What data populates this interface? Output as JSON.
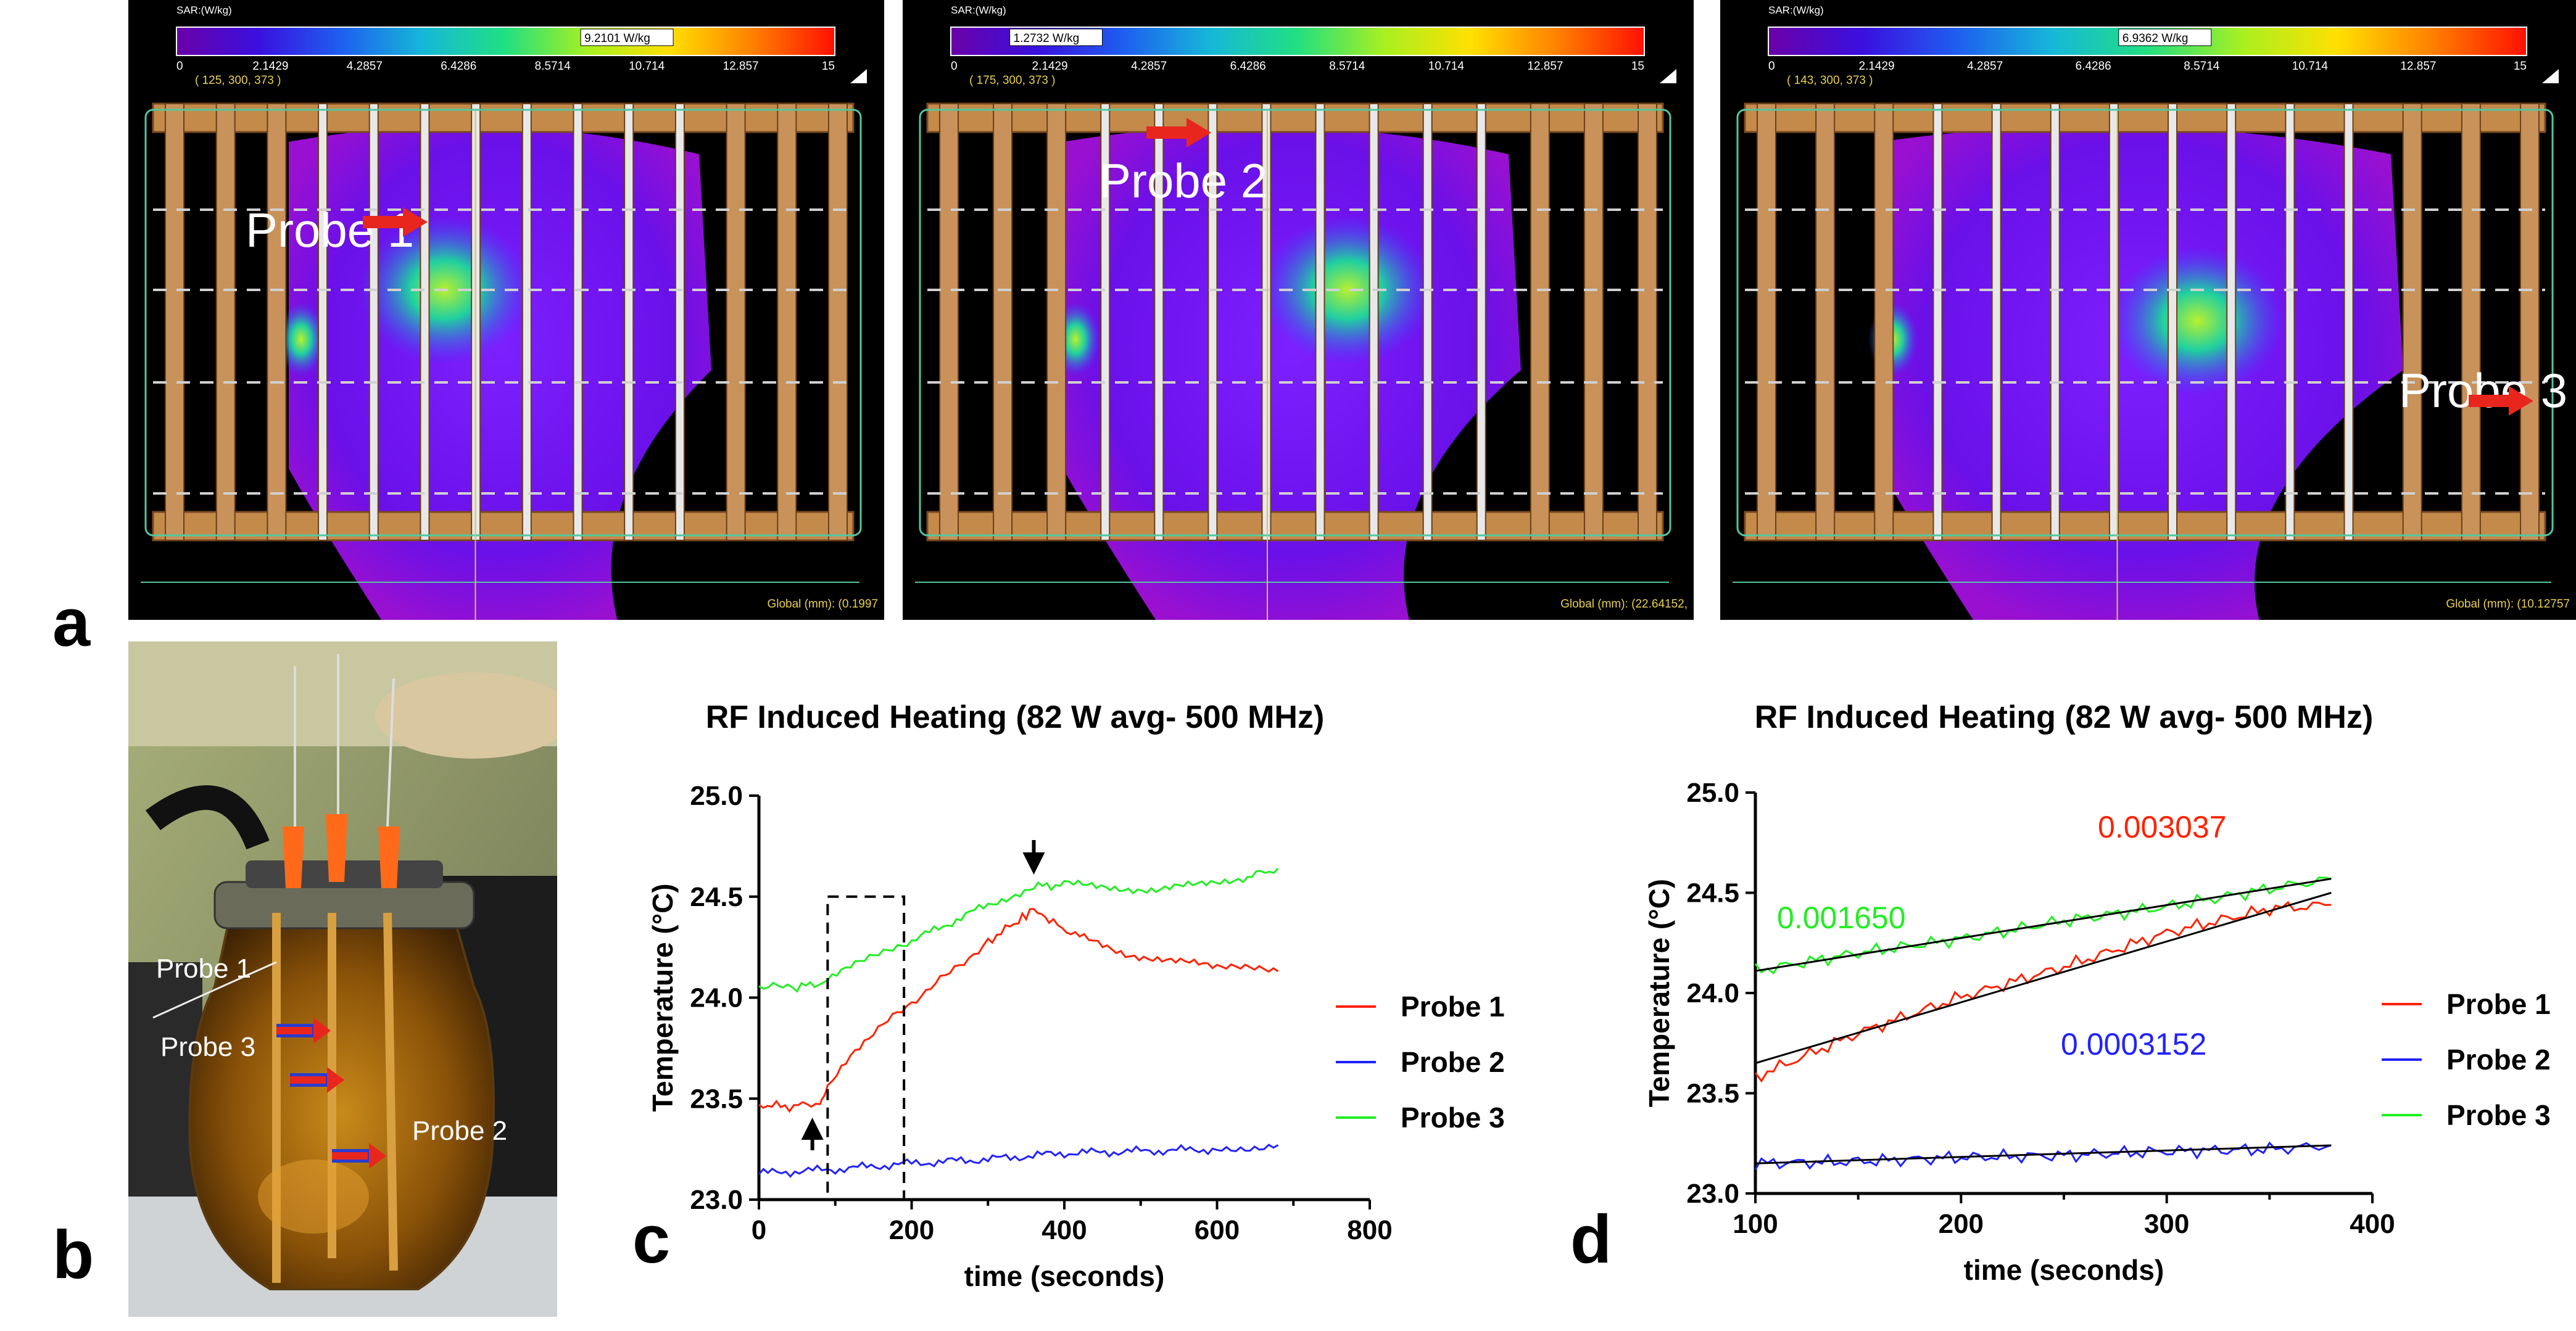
{
  "panel_letters": {
    "a": "a",
    "b": "b",
    "c": "c",
    "d": "d"
  },
  "sar_panels": [
    {
      "colorbar_title": "SAR:(W/kg)",
      "readout": "9.2101 W/kg",
      "readout_frac": 0.614,
      "ticks": [
        "0",
        "2.1429",
        "4.2857",
        "6.4286",
        "8.5714",
        "10.714",
        "12.857",
        "15"
      ],
      "coords": "( 125, 300, 373 )",
      "probe_label": "Probe 1",
      "global": "Global (mm): (0.1997"
    },
    {
      "colorbar_title": "SAR:(W/kg)",
      "readout": "1.2732 W/kg",
      "readout_frac": 0.085,
      "ticks": [
        "0",
        "2.1429",
        "4.2857",
        "6.4286",
        "8.5714",
        "10.714",
        "12.857",
        "15"
      ],
      "coords": "( 175, 300, 373 )",
      "probe_label": "Probe 2",
      "global": "Global (mm): (22.64152,"
    },
    {
      "colorbar_title": "SAR:(W/kg)",
      "readout": "6.9362 W/kg",
      "readout_frac": 0.462,
      "ticks": [
        "0",
        "2.1429",
        "4.2857",
        "6.4286",
        "8.5714",
        "10.714",
        "12.857",
        "15"
      ],
      "coords": "( 143, 300, 373 )",
      "probe_label": "Probe 3",
      "global": "Global (mm): (10.12757"
    }
  ],
  "photo_labels": {
    "probe1": "Probe 1",
    "probe3": "Probe 3",
    "probe2": "Probe 2"
  },
  "colors": {
    "probe1": "#ff2200",
    "probe2": "#2222ff",
    "probe3": "#22ee22",
    "arrow": "#e8261e"
  },
  "chart_data": [
    {
      "type": "line",
      "title": "RF Induced Heating (82 W avg- 500 MHz)",
      "xlabel": "time (seconds)",
      "ylabel": "Temperature (°C)",
      "xlim": [
        0,
        800
      ],
      "ylim": [
        23.0,
        25.0
      ],
      "xticks": [
        "0",
        "200",
        "400",
        "600",
        "800"
      ],
      "yticks": [
        "23.0",
        "23.5",
        "24.0",
        "24.5",
        "25.0"
      ],
      "legend_position": "right",
      "series": [
        {
          "name": "Probe 1",
          "color": "#ff2200",
          "x": [
            0,
            40,
            80,
            90,
            120,
            150,
            200,
            250,
            300,
            340,
            360,
            380,
            420,
            480,
            540,
            600,
            680
          ],
          "y": [
            23.47,
            23.46,
            23.48,
            23.55,
            23.7,
            23.82,
            23.98,
            24.12,
            24.28,
            24.38,
            24.44,
            24.38,
            24.3,
            24.22,
            24.18,
            24.15,
            24.13
          ]
        },
        {
          "name": "Probe 2",
          "color": "#2222ff",
          "x": [
            0,
            100,
            200,
            300,
            400,
            500,
            600,
            680
          ],
          "y": [
            23.13,
            23.15,
            23.18,
            23.2,
            23.23,
            23.24,
            23.25,
            23.27
          ]
        },
        {
          "name": "Probe 3",
          "color": "#22ee22",
          "x": [
            0,
            50,
            90,
            120,
            200,
            300,
            360,
            400,
            460,
            520,
            580,
            640,
            680
          ],
          "y": [
            24.05,
            24.05,
            24.08,
            24.15,
            24.28,
            24.46,
            24.55,
            24.56,
            24.55,
            24.53,
            24.56,
            24.6,
            24.64
          ]
        }
      ],
      "annotations": {
        "up_arrow_x": 70,
        "down_arrow_x": 360,
        "box": {
          "x": [
            90,
            190
          ],
          "y": [
            23.0,
            24.5
          ]
        }
      }
    },
    {
      "type": "line",
      "title": "RF Induced Heating (82 W avg- 500 MHz)",
      "xlabel": "time (seconds)",
      "ylabel": "Temperature (°C)",
      "xlim": [
        100,
        400
      ],
      "ylim": [
        23.0,
        25.0
      ],
      "xticks": [
        "100",
        "200",
        "300",
        "400"
      ],
      "yticks": [
        "23.0",
        "23.5",
        "24.0",
        "24.5",
        "25.0"
      ],
      "legend_position": "right",
      "series": [
        {
          "name": "Probe 1",
          "color": "#ff2200",
          "x": [
            100,
            150,
            200,
            250,
            300,
            350,
            380
          ],
          "y": [
            23.58,
            23.8,
            23.98,
            24.13,
            24.3,
            24.42,
            24.44
          ],
          "fit": {
            "x": [
              100,
              380
            ],
            "y": [
              23.65,
              24.5
            ]
          }
        },
        {
          "name": "Probe 2",
          "color": "#2222ff",
          "x": [
            100,
            150,
            200,
            250,
            300,
            350,
            380
          ],
          "y": [
            23.15,
            23.16,
            23.18,
            23.19,
            23.21,
            23.22,
            23.24
          ],
          "fit": {
            "x": [
              100,
              380
            ],
            "y": [
              23.15,
              23.24
            ]
          }
        },
        {
          "name": "Probe 3",
          "color": "#22ee22",
          "x": [
            100,
            150,
            200,
            250,
            300,
            350,
            380
          ],
          "y": [
            24.11,
            24.2,
            24.27,
            24.36,
            24.43,
            24.52,
            24.57
          ],
          "fit": {
            "x": [
              100,
              380
            ],
            "y": [
              24.11,
              24.57
            ]
          }
        }
      ],
      "slopes": [
        {
          "text": "0.003037",
          "color": "#ff2200"
        },
        {
          "text": "0.001650",
          "color": "#22ee22"
        },
        {
          "text": "0.0003152",
          "color": "#2222ff"
        }
      ]
    }
  ]
}
